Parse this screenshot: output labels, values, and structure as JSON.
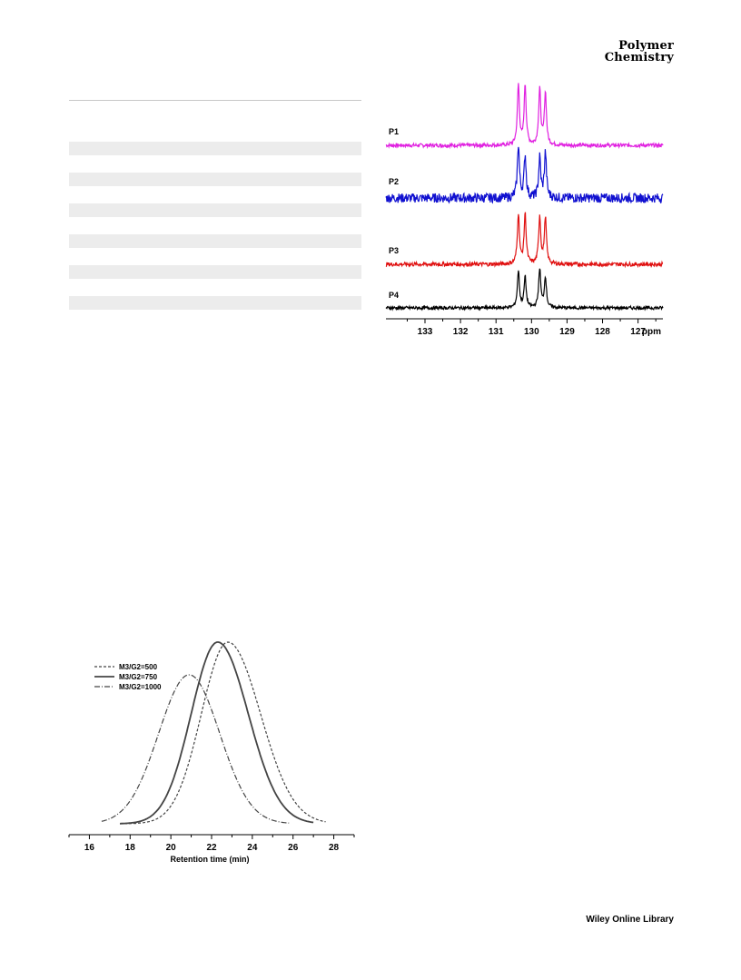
{
  "header": {
    "journal_line1": "Polymer",
    "journal_line2": "Chemistry"
  },
  "table": {
    "stripe_count": 6
  },
  "footer": {
    "publisher": "Wiley Online Library"
  },
  "chart_data": [
    {
      "type": "line",
      "title": "",
      "xlabel": "",
      "unit_label": "ppm",
      "x_reversed": true,
      "xlim": [
        126.3,
        134.1
      ],
      "x_ticks": [
        133,
        132,
        131,
        130,
        129,
        128,
        127
      ],
      "series": [
        {
          "name": "P1",
          "color": "#e020e0",
          "peaks": [
            130.37,
            130.18,
            129.77,
            129.61
          ],
          "peak_heights": [
            1.0,
            1.0,
            0.93,
            0.87
          ],
          "noise": 0.03
        },
        {
          "name": "P2",
          "color": "#1010d0",
          "peaks": [
            130.37,
            130.18,
            129.77,
            129.61
          ],
          "peak_heights": [
            1.0,
            0.8,
            0.75,
            0.85
          ],
          "noise": 0.09
        },
        {
          "name": "P3",
          "color": "#e01010",
          "peaks": [
            130.37,
            130.18,
            129.77,
            129.61
          ],
          "peak_heights": [
            1.0,
            1.0,
            0.95,
            0.92
          ],
          "noise": 0.04
        },
        {
          "name": "P4",
          "color": "#000000",
          "peaks": [
            130.37,
            130.18,
            129.77,
            129.61
          ],
          "peak_heights": [
            0.9,
            0.75,
            0.95,
            0.75
          ],
          "noise": 0.04
        }
      ]
    },
    {
      "type": "line",
      "title": "",
      "xlabel": "Retention time (min)",
      "ylabel": "",
      "xlim": [
        15,
        29
      ],
      "x_ticks": [
        16,
        18,
        20,
        22,
        24,
        26,
        28
      ],
      "legend_position": "top-left",
      "series": [
        {
          "name": "M3/G2=500",
          "line_style": "dashed",
          "peak_x": 22.8,
          "peak_height": 1.0,
          "sigma_left": 1.3,
          "sigma_right": 1.6,
          "start_x": 17.5,
          "end_x": 27.6
        },
        {
          "name": "M3/G2=750",
          "line_style": "solid",
          "peak_x": 22.3,
          "peak_height": 1.0,
          "sigma_left": 1.3,
          "sigma_right": 1.5,
          "start_x": 17.5,
          "end_x": 27.0
        },
        {
          "name": "M3/G2=1000",
          "line_style": "dash-dot",
          "peak_x": 20.9,
          "peak_height": 0.82,
          "sigma_left": 1.5,
          "sigma_right": 1.5,
          "start_x": 16.6,
          "end_x": 25.8
        }
      ]
    }
  ]
}
